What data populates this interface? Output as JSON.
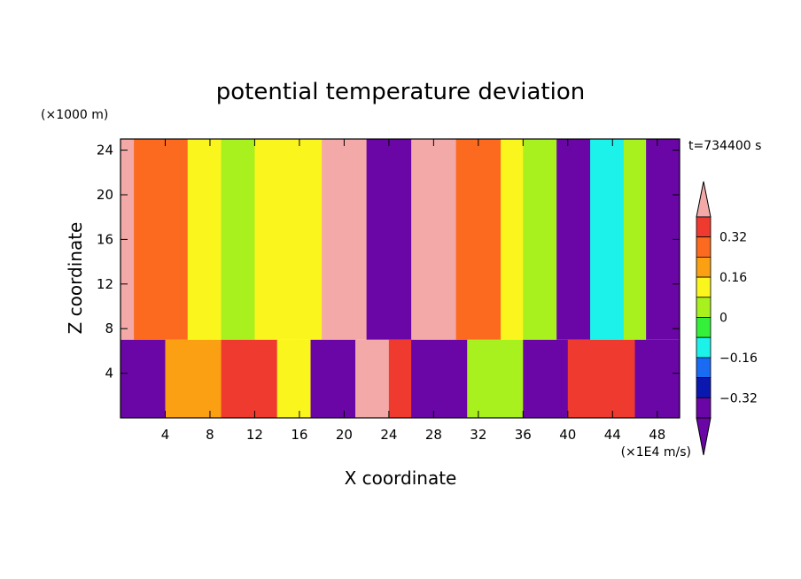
{
  "chart_data": {
    "type": "heatmap",
    "title": "potential temperature deviation",
    "time_label": "t=734400 s",
    "xlabel": "X coordinate",
    "ylabel": "Z coordinate",
    "x_unit": "(×1E4 m/s)",
    "y_unit": "(×1000 m)",
    "xlim": [
      0,
      50
    ],
    "ylim": [
      0,
      25
    ],
    "x_ticks": [
      4,
      8,
      12,
      16,
      20,
      24,
      28,
      32,
      36,
      40,
      44,
      48
    ],
    "y_ticks": [
      4,
      8,
      12,
      16,
      20,
      24
    ],
    "colorbar": {
      "labels": [
        "0.32",
        "0.16",
        "0",
        "-0.16",
        "-0.32"
      ],
      "levels_top_to_bottom": [
        0.4,
        0.32,
        0.24,
        0.16,
        0.08,
        0,
        -0.08,
        -0.16,
        -0.24,
        -0.32,
        -0.4
      ],
      "bin_colors_top_to_bottom": [
        "#f4a9a9",
        "#ef3a2f",
        "#fb6a1e",
        "#fba012",
        "#fbf51e",
        "#a8f01e",
        "#34f03b",
        "#1cf2ea",
        "#1a6bf3",
        "#0a18b0",
        "#6a06a6",
        "#6a06a6"
      ],
      "extend": "both"
    },
    "upper_layer_columns": [
      {
        "x_from": 0,
        "x_to": 1.2,
        "level": 0.4
      },
      {
        "x_from": 1.2,
        "x_to": 6,
        "level": 0.25
      },
      {
        "x_from": 6,
        "x_to": 9,
        "level": 0.12
      },
      {
        "x_from": 9,
        "x_to": 12,
        "level": 0.04
      },
      {
        "x_from": 12,
        "x_to": 16,
        "level": 0.1
      },
      {
        "x_from": 16,
        "x_to": 18,
        "level": 0.14
      },
      {
        "x_from": 18,
        "x_to": 22,
        "level": 0.42
      },
      {
        "x_from": 22,
        "x_to": 26,
        "level": -0.45
      },
      {
        "x_from": 26,
        "x_to": 30,
        "level": 0.42
      },
      {
        "x_from": 30,
        "x_to": 34,
        "level": 0.28
      },
      {
        "x_from": 34,
        "x_to": 36,
        "level": 0.1
      },
      {
        "x_from": 36,
        "x_to": 39,
        "level": 0.0
      },
      {
        "x_from": 39,
        "x_to": 42,
        "level": -0.36
      },
      {
        "x_from": 42,
        "x_to": 45,
        "level": -0.15
      },
      {
        "x_from": 45,
        "x_to": 47,
        "level": 0.02
      },
      {
        "x_from": 47,
        "x_to": 50,
        "level": -0.42
      }
    ],
    "layer_boundary_z": 7,
    "lower_layer_columns": [
      {
        "x_from": 0,
        "x_to": 4,
        "level": -0.42
      },
      {
        "x_from": 4,
        "x_to": 9,
        "level": 0.22
      },
      {
        "x_from": 9,
        "x_to": 14,
        "level": 0.38
      },
      {
        "x_from": 14,
        "x_to": 17,
        "level": 0.1
      },
      {
        "x_from": 17,
        "x_to": 21,
        "level": -0.34
      },
      {
        "x_from": 21,
        "x_to": 24,
        "level": 0.42
      },
      {
        "x_from": 24,
        "x_to": 26,
        "level": 0.36
      },
      {
        "x_from": 26,
        "x_to": 31,
        "level": -0.44
      },
      {
        "x_from": 31,
        "x_to": 36,
        "level": 0.05
      },
      {
        "x_from": 36,
        "x_to": 40,
        "level": -0.38
      },
      {
        "x_from": 40,
        "x_to": 46,
        "level": 0.38
      },
      {
        "x_from": 46,
        "x_to": 50,
        "level": -0.42
      }
    ]
  }
}
